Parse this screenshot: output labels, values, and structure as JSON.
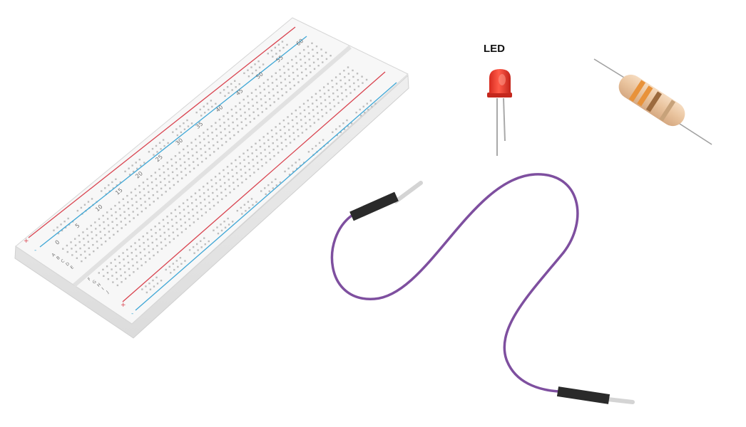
{
  "components": {
    "led": {
      "label": "LED",
      "color": "#e8362a"
    },
    "resistor": {
      "bands": [
        "#e8923a",
        "#e8923a",
        "#9b6a3e",
        "#c7a27a"
      ]
    },
    "jumper_wire": {
      "color": "#7e4f9f"
    }
  },
  "breadboard": {
    "column_numbers": [
      "0",
      "5",
      "10",
      "15",
      "20",
      "25",
      "30",
      "35",
      "40",
      "45",
      "50",
      "55",
      "60"
    ],
    "row_letters_top": [
      "A",
      "B",
      "C",
      "D",
      "E"
    ],
    "row_letters_bottom": [
      "F",
      "G",
      "H",
      "I",
      "J"
    ],
    "rail_plus": "+",
    "rail_minus": "-",
    "rail_red": "#d9434f",
    "rail_blue": "#3fa7d6"
  }
}
